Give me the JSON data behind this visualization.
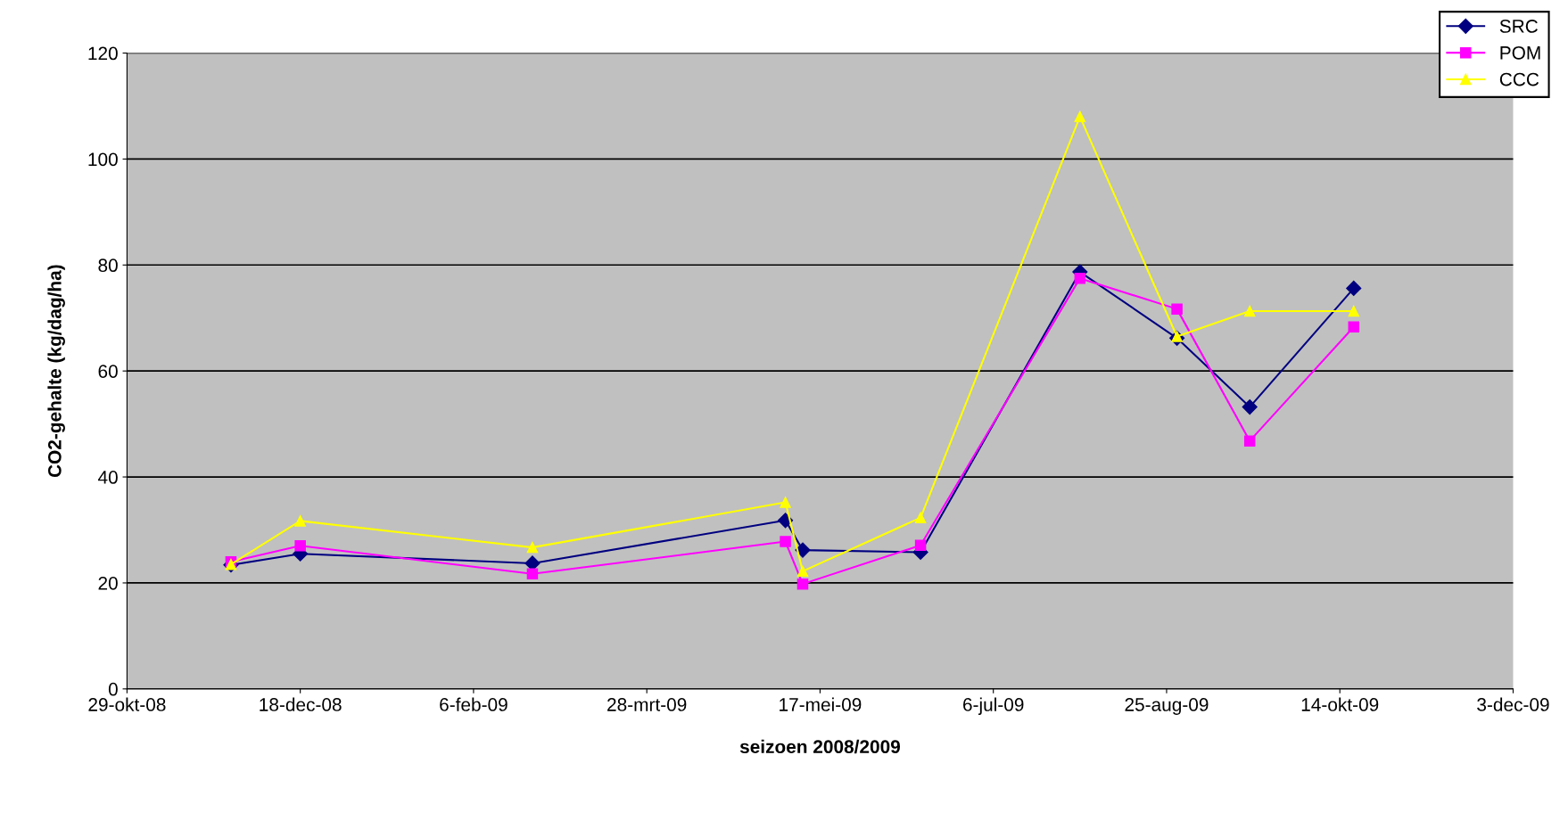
{
  "chart_data": {
    "type": "line",
    "xlabel": "seizoen 2008/2009",
    "ylabel": "CO2-gehalte (kg/dag/ha)",
    "x": [
      "2008-11-28",
      "2008-12-18",
      "2009-02-23",
      "2009-05-07",
      "2009-05-12",
      "2009-06-15",
      "2009-07-31",
      "2009-08-28",
      "2009-09-18",
      "2009-10-18"
    ],
    "series": [
      {
        "name": "SRC",
        "color": "#000080",
        "marker": "diamond",
        "values": [
          23.4,
          25.5,
          23.7,
          31.8,
          26.2,
          25.8,
          78.7,
          66.2,
          53.2,
          75.6
        ]
      },
      {
        "name": "POM",
        "color": "#ff00ff",
        "marker": "square",
        "values": [
          24.0,
          27.0,
          21.7,
          27.8,
          19.8,
          27.1,
          77.5,
          71.7,
          46.8,
          68.3
        ]
      },
      {
        "name": "CCC",
        "color": "#ffff00",
        "marker": "triangle",
        "values": [
          23.5,
          31.7,
          26.7,
          35.2,
          22.2,
          32.3,
          108,
          66.5,
          71.3,
          71.3
        ]
      }
    ],
    "xlim": [
      "2008-10-29",
      "2009-12-03"
    ],
    "xticks": [
      {
        "value": "2008-10-29",
        "label": "29-okt-08"
      },
      {
        "value": "2008-12-18",
        "label": "18-dec-08"
      },
      {
        "value": "2009-02-06",
        "label": "6-feb-09"
      },
      {
        "value": "2009-03-28",
        "label": "28-mrt-09"
      },
      {
        "value": "2009-05-17",
        "label": "17-mei-09"
      },
      {
        "value": "2009-07-06",
        "label": "6-jul-09"
      },
      {
        "value": "2009-08-25",
        "label": "25-aug-09"
      },
      {
        "value": "2009-10-14",
        "label": "14-okt-09"
      },
      {
        "value": "2009-12-03",
        "label": "3-dec-09"
      }
    ],
    "ylim": [
      0,
      120
    ],
    "yticks": [
      0,
      20,
      40,
      60,
      80,
      100,
      120
    ],
    "grid": "y",
    "legend": "top right",
    "line_style": "solid"
  }
}
